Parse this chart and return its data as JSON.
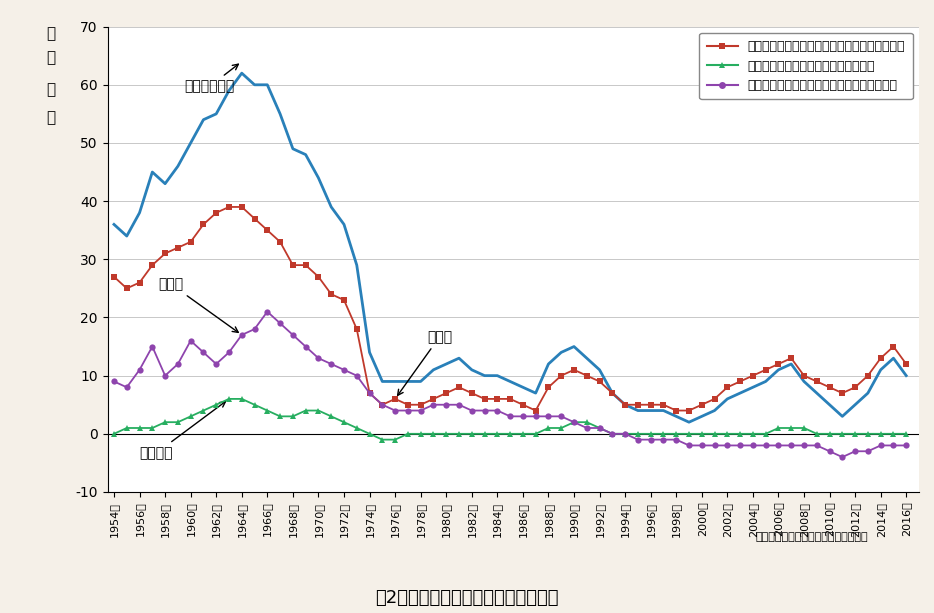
{
  "years": [
    1954,
    1955,
    1956,
    1957,
    1958,
    1959,
    1960,
    1961,
    1962,
    1963,
    1964,
    1965,
    1966,
    1967,
    1968,
    1969,
    1970,
    1971,
    1972,
    1973,
    1974,
    1975,
    1976,
    1977,
    1978,
    1979,
    1980,
    1981,
    1982,
    1983,
    1984,
    1985,
    1986,
    1987,
    1988,
    1989,
    1990,
    1991,
    1992,
    1993,
    1994,
    1995,
    1996,
    1997,
    1998,
    1999,
    2000,
    2001,
    2002,
    2003,
    2004,
    2005,
    2006,
    2007,
    2008,
    2009,
    2010,
    2011,
    2012,
    2013,
    2014,
    2015,
    2016
  ],
  "tokyo": [
    27,
    25,
    26,
    29,
    31,
    32,
    33,
    36,
    38,
    39,
    39,
    37,
    35,
    33,
    29,
    29,
    27,
    24,
    23,
    18,
    7,
    5,
    6,
    5,
    5,
    6,
    7,
    8,
    7,
    6,
    6,
    6,
    5,
    4,
    8,
    10,
    11,
    10,
    9,
    7,
    5,
    5,
    5,
    5,
    4,
    4,
    5,
    6,
    8,
    9,
    10,
    11,
    12,
    13,
    10,
    9,
    8,
    7,
    8,
    10,
    13,
    15,
    12
  ],
  "nagoya": [
    0,
    1,
    1,
    1,
    2,
    2,
    3,
    4,
    5,
    6,
    6,
    5,
    4,
    3,
    3,
    4,
    4,
    3,
    2,
    1,
    0,
    -1,
    -1,
    0,
    0,
    0,
    0,
    0,
    0,
    0,
    0,
    0,
    0,
    0,
    1,
    1,
    2,
    2,
    1,
    0,
    0,
    0,
    0,
    0,
    0,
    0,
    0,
    0,
    0,
    0,
    0,
    0,
    1,
    1,
    1,
    0,
    0,
    0,
    0,
    0,
    0,
    0,
    0
  ],
  "osaka": [
    9,
    8,
    11,
    15,
    10,
    12,
    16,
    14,
    12,
    14,
    17,
    18,
    21,
    19,
    17,
    15,
    13,
    12,
    11,
    10,
    7,
    5,
    4,
    4,
    4,
    5,
    5,
    5,
    4,
    4,
    4,
    3,
    3,
    3,
    3,
    3,
    2,
    1,
    1,
    0,
    0,
    -1,
    -1,
    -1,
    -1,
    -2,
    -2,
    -2,
    -2,
    -2,
    -2,
    -2,
    -2,
    -2,
    -2,
    -2,
    -3,
    -4,
    -3,
    -3,
    -2,
    -2,
    -2
  ],
  "sansai": [
    36,
    34,
    38,
    45,
    43,
    46,
    50,
    54,
    55,
    59,
    62,
    60,
    60,
    55,
    49,
    48,
    44,
    39,
    36,
    29,
    14,
    9,
    9,
    9,
    9,
    11,
    12,
    13,
    11,
    10,
    10,
    9,
    8,
    7,
    12,
    14,
    15,
    13,
    11,
    7,
    5,
    4,
    4,
    4,
    3,
    2,
    3,
    4,
    6,
    7,
    8,
    9,
    11,
    12,
    9,
    7,
    5,
    3,
    5,
    7,
    11,
    13,
    10
  ],
  "tokyo_color": "#c0392b",
  "nagoya_color": "#27ae60",
  "osaka_color": "#8e44ad",
  "sansai_color": "#2980b9",
  "bg_color": "#f5f0e8",
  "plot_bg": "#ffffff",
  "title": "嘴2　三大都市圈の転入超過数の推移",
  "ylabel_line1": "（",
  "ylabel_line2": "万",
  "ylabel_line3": "人",
  "ylabel_line4": "）",
  "source": "資料：住民基本台帳人口移動報告年報",
  "legend_tokyo": "東京圈（東京都、神奈川県、埼玉県、千葉県）",
  "legend_nagoya": "名古屋圈（愛知県、岐阜県、三重県）",
  "legend_osaka": "大阪圈（大阪府、京都府、兵庫県、奈良県）",
  "ann_sansai": "三大都市圈計",
  "ann_osaka": "大阪圈",
  "ann_nagoya": "名古屋圈",
  "ann_tokyo": "東京圈",
  "ylim": [
    -10,
    70
  ]
}
